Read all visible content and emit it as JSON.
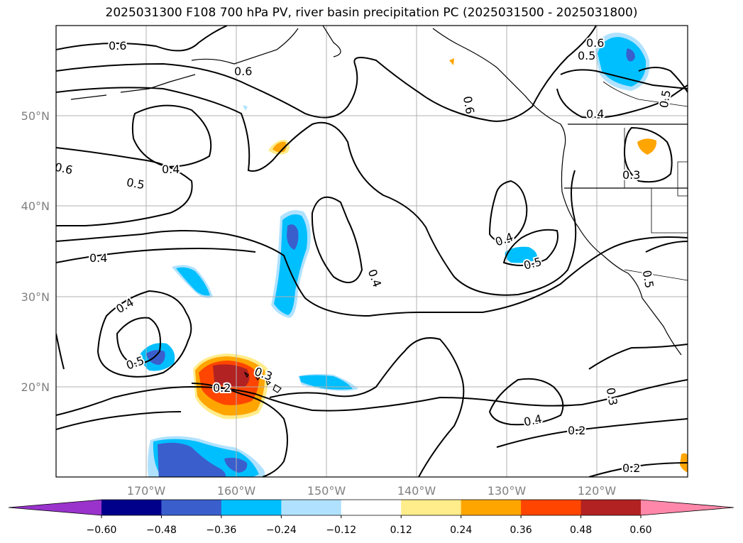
{
  "title": "2025031300 F108 700 hPa PV, river basin precipitation PC (2025031500 - 2025031800)",
  "map": {
    "lon_labels": [
      "170°W",
      "160°W",
      "150°W",
      "140°W",
      "130°W",
      "120°W"
    ],
    "lat_labels": [
      "50°N",
      "40°N",
      "30°N",
      "20°N"
    ],
    "contour_labels": [
      "0.6",
      "0.6",
      "0.6",
      "0.6",
      "0.5",
      "0.5",
      "0.4",
      "0.6",
      "0.4",
      "0.5",
      "0.3",
      "0.4",
      "0.4",
      "0.4",
      "0.5",
      "0.4",
      "0.5",
      "0.3",
      "0.2",
      "0.5",
      "0.4",
      "0.3",
      "0.2",
      "0.2"
    ]
  },
  "colorbar": {
    "tick_labels": [
      "−0.60",
      "−0.48",
      "−0.36",
      "−0.24",
      "−0.12",
      "0.12",
      "0.24",
      "0.36",
      "0.48",
      "0.60"
    ],
    "colors": [
      "#9933cc",
      "#00008b",
      "#3a5fcd",
      "#00bfff",
      "#b0e2ff",
      "#ffffff",
      "#ffec8b",
      "#ffa500",
      "#ff4500",
      "#b22222",
      "#ff88aa"
    ]
  }
}
